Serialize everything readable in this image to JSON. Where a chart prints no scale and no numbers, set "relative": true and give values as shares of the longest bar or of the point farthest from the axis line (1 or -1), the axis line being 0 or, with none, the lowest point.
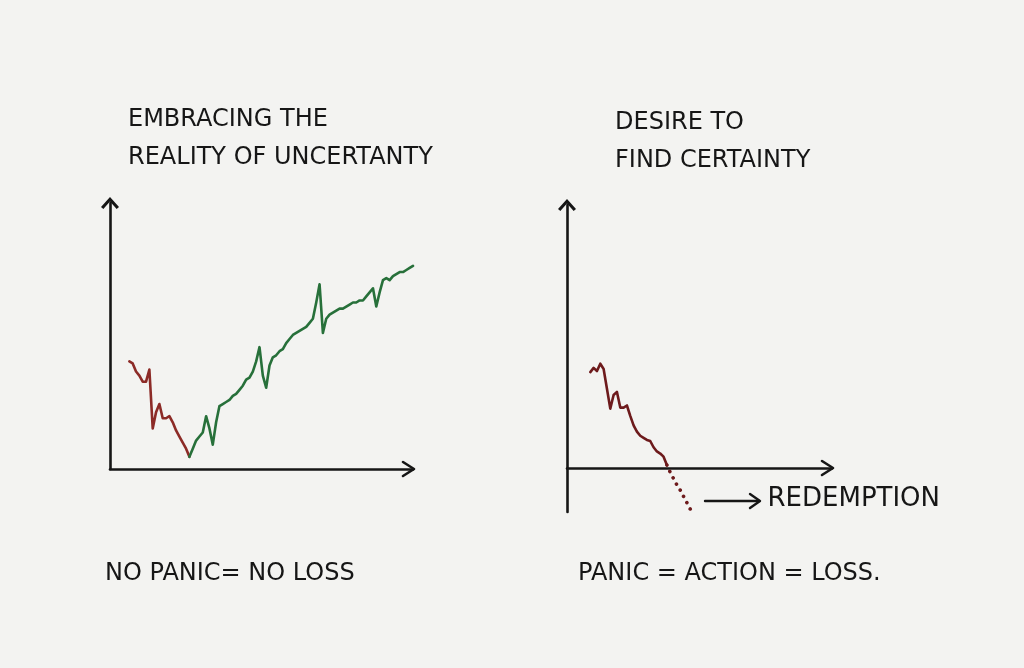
{
  "chart_data": [
    {
      "type": "line",
      "title": "EMBRACING THE\nREALITY OF UNCERTANTY",
      "relative": true,
      "marker": "none",
      "annotations": [
        "NO PANIC= NO LOSS"
      ],
      "categories": [
        null,
        null,
        null,
        null,
        null,
        null,
        null,
        null,
        null,
        null,
        null,
        null,
        null,
        null,
        null,
        null,
        null,
        null,
        null,
        null,
        null,
        null,
        null,
        null,
        null,
        null,
        null,
        null,
        null,
        null,
        null,
        null,
        null,
        null,
        null,
        null,
        null,
        null,
        null,
        null,
        null,
        null,
        null,
        null,
        null,
        null,
        null,
        null,
        null,
        null,
        null,
        null,
        null,
        null,
        null,
        null,
        null,
        null,
        null,
        null,
        null,
        null,
        null,
        null,
        null,
        null,
        null,
        null,
        null,
        null,
        null,
        null,
        null,
        null,
        null,
        null,
        null,
        null,
        null,
        null,
        null,
        null,
        null,
        null,
        null,
        null
      ],
      "series": [
        {
          "color": "#8c2b27",
          "values": [
            0.53,
            0.52,
            0.48,
            0.46,
            0.43,
            0.43,
            0.49,
            0.2,
            0.28,
            0.32,
            0.25,
            0.25,
            0.26,
            0.23,
            0.19,
            0.16,
            0.13,
            0.1,
            0.06,
            null,
            null,
            null,
            null,
            null,
            null,
            null,
            null,
            null,
            null,
            null,
            null,
            null,
            null,
            null,
            null,
            null,
            null,
            null,
            null,
            null,
            null,
            null,
            null,
            null,
            null,
            null,
            null,
            null,
            null,
            null,
            null,
            null,
            null,
            null,
            null,
            null,
            null,
            null,
            null,
            null,
            null,
            null,
            null,
            null,
            null,
            null,
            null,
            null,
            null,
            null,
            null,
            null,
            null,
            null,
            null,
            null,
            null,
            null,
            null,
            null,
            null,
            null,
            null,
            null,
            null,
            null
          ]
        },
        {
          "color": "#27703a",
          "values": [
            null,
            null,
            null,
            null,
            null,
            null,
            null,
            null,
            null,
            null,
            null,
            null,
            null,
            null,
            null,
            null,
            null,
            null,
            0.06,
            0.1,
            0.14,
            0.16,
            0.18,
            0.26,
            0.2,
            0.12,
            0.23,
            0.31,
            0.32,
            0.33,
            0.34,
            0.36,
            0.37,
            0.39,
            0.41,
            0.44,
            0.45,
            0.48,
            0.53,
            0.6,
            0.46,
            0.4,
            0.51,
            0.55,
            0.56,
            0.58,
            0.59,
            0.62,
            0.64,
            0.66,
            0.67,
            0.68,
            0.69,
            0.7,
            0.72,
            0.74,
            0.82,
            0.91,
            0.67,
            0.74,
            0.76,
            0.77,
            0.78,
            0.79,
            0.79,
            0.8,
            0.81,
            0.82,
            0.82,
            0.83,
            0.83,
            0.85,
            0.87,
            0.89,
            0.8,
            0.87,
            0.93,
            0.94,
            0.93,
            0.95,
            0.96,
            0.97,
            0.97,
            0.98,
            0.99,
            1
          ]
        }
      ]
    },
    {
      "type": "line",
      "title": "DESIRE TO\nFIND CERTAINTY",
      "relative": true,
      "marker": "none",
      "annotations": [
        "PANIC = ACTION = LOSS.",
        "REDEMPTION"
      ],
      "categories": [
        null,
        null,
        null,
        null,
        null,
        null,
        null,
        null,
        null,
        null,
        null,
        null,
        null,
        null,
        null,
        null,
        null,
        null,
        null,
        null,
        null,
        null,
        null,
        null,
        null,
        null,
        null,
        null,
        null,
        null,
        null,
        null
      ],
      "series": [
        {
          "color": "#6d1a1c",
          "values": [
            0.92,
            0.96,
            0.93,
            1,
            0.95,
            0.76,
            0.57,
            0.7,
            0.73,
            0.58,
            0.58,
            0.6,
            0.5,
            0.41,
            0.35,
            0.31,
            0.29,
            0.27,
            0.26,
            0.2,
            0.16,
            0.14,
            0.11,
            0.03,
            null,
            null,
            null,
            null,
            null,
            null,
            null,
            null
          ]
        },
        {
          "color": "#6d1a1c",
          "line_style": "dotted",
          "values": [
            null,
            null,
            null,
            null,
            null,
            null,
            null,
            null,
            null,
            null,
            null,
            null,
            null,
            null,
            null,
            null,
            null,
            null,
            null,
            null,
            null,
            null,
            null,
            0.03,
            -0.04,
            -0.1,
            -0.16,
            -0.21,
            -0.27,
            -0.33,
            -0.39,
            -0.42
          ]
        }
      ]
    }
  ]
}
